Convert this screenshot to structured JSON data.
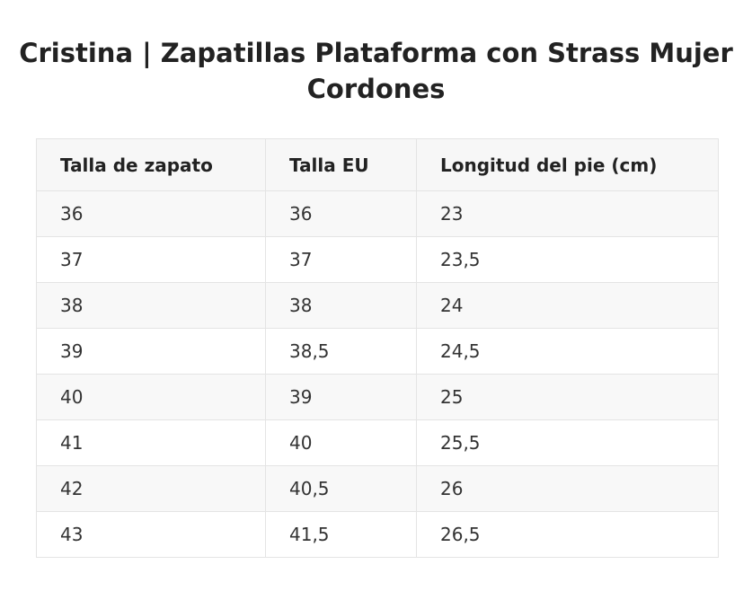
{
  "title": "Cristina | Zapatillas Plataforma con Strass Mujer Cordones",
  "table": {
    "headers": [
      "Talla de zapato",
      "Talla EU",
      "Longitud del pie (cm)"
    ],
    "rows": [
      [
        "36",
        "36",
        "23"
      ],
      [
        "37",
        "37",
        "23,5"
      ],
      [
        "38",
        "38",
        "24"
      ],
      [
        "39",
        "38,5",
        "24,5"
      ],
      [
        "40",
        "39",
        "25"
      ],
      [
        "41",
        "40",
        "25,5"
      ],
      [
        "42",
        "40,5",
        "26"
      ],
      [
        "43",
        "41,5",
        "26,5"
      ]
    ]
  }
}
